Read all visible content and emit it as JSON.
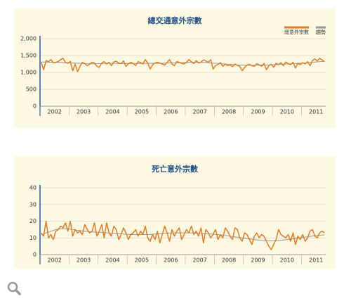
{
  "chart_data": [
    {
      "type": "line",
      "title": "總交通意外宗數",
      "legend": "top-right",
      "categories": [
        null,
        null,
        null,
        null,
        null,
        null,
        "2002",
        null,
        null,
        null,
        null,
        null,
        null,
        null,
        null,
        null,
        null,
        null,
        "2003",
        null,
        null,
        null,
        null,
        null,
        null,
        null,
        null,
        null,
        null,
        null,
        "2004",
        null,
        null,
        null,
        null,
        null,
        null,
        null,
        null,
        null,
        null,
        null,
        "2005",
        null,
        null,
        null,
        null,
        null,
        null,
        null,
        null,
        null,
        null,
        null,
        "2006",
        null,
        null,
        null,
        null,
        null,
        null,
        null,
        null,
        null,
        null,
        null,
        "2007",
        null,
        null,
        null,
        null,
        null,
        null,
        null,
        null,
        null,
        null,
        null,
        "2008",
        null,
        null,
        null,
        null,
        null,
        null,
        null,
        null,
        null,
        null,
        null,
        "2009",
        null,
        null,
        null,
        null,
        null,
        null,
        null,
        null,
        null,
        null,
        null,
        "2010",
        null,
        null,
        null,
        null,
        null,
        null,
        null,
        null,
        null,
        null,
        null,
        "2011",
        null,
        null,
        null
      ],
      "series": [
        {
          "name": "總意外宗數",
          "color": "#e57c22",
          "values": [
            1300,
            1080,
            1350,
            1320,
            1380,
            1290,
            1300,
            1320,
            1380,
            1420,
            1300,
            1270,
            1330,
            1050,
            1250,
            1020,
            1180,
            1300,
            1260,
            1200,
            1240,
            1300,
            1280,
            1180,
            1150,
            1280,
            1320,
            1250,
            1300,
            1200,
            1310,
            1330,
            1280,
            1260,
            1340,
            1180,
            1250,
            1300,
            1270,
            1200,
            1320,
            1290,
            1250,
            1380,
            1280,
            1100,
            1230,
            1280,
            1300,
            1280,
            1250,
            1220,
            1300,
            1380,
            1250,
            1200,
            1320,
            1300,
            1270,
            1250,
            1300,
            1380,
            1320,
            1260,
            1350,
            1280,
            1310,
            1370,
            1340,
            1300,
            1380,
            1100,
            1200,
            1240,
            1290,
            1180,
            1250,
            1200,
            1230,
            1170,
            1250,
            1210,
            1180,
            1050,
            1150,
            1220,
            1240,
            1200,
            1180,
            1260,
            1230,
            1180,
            1270,
            1080,
            1200,
            1240,
            1150,
            1270,
            1230,
            1290,
            1200,
            1310,
            1260,
            1230,
            1300,
            1130,
            1270,
            1230,
            1290,
            1250,
            1320,
            1200,
            1350,
            1400,
            1340,
            1420,
            1370,
            1320
          ]
        },
        {
          "name": "趨勢",
          "color": "#8b9aa3",
          "values": [
            1310,
            1308,
            1306,
            1304,
            1302,
            1300,
            1298,
            1296,
            1294,
            1292,
            1290,
            1288,
            1286,
            1282,
            1278,
            1274,
            1270,
            1266,
            1262,
            1258,
            1256,
            1256,
            1258,
            1260,
            1262,
            1264,
            1266,
            1268,
            1270,
            1270,
            1270,
            1268,
            1266,
            1264,
            1262,
            1262,
            1262,
            1262,
            1264,
            1264,
            1266,
            1266,
            1268,
            1268,
            1270,
            1270,
            1270,
            1270,
            1270,
            1272,
            1274,
            1276,
            1278,
            1280,
            1282,
            1284,
            1286,
            1288,
            1290,
            1292,
            1294,
            1296,
            1298,
            1300,
            1300,
            1300,
            1298,
            1296,
            1292,
            1288,
            1282,
            1276,
            1270,
            1264,
            1258,
            1252,
            1246,
            1240,
            1236,
            1232,
            1228,
            1224,
            1220,
            1218,
            1216,
            1214,
            1212,
            1212,
            1212,
            1214,
            1216,
            1218,
            1220,
            1222,
            1224,
            1226,
            1228,
            1232,
            1236,
            1240,
            1244,
            1248,
            1252,
            1256,
            1260,
            1264,
            1268,
            1272,
            1276,
            1282,
            1288,
            1294,
            1300,
            1306,
            1312,
            1318,
            1322,
            1326
          ]
        }
      ],
      "ylim": [
        0,
        2000
      ],
      "yticks": [
        0,
        500,
        {
          "value": 1000,
          "label": "1,000"
        },
        {
          "value": 1500,
          "label": "1,500"
        },
        {
          "value": 2000,
          "label": "2,000"
        }
      ],
      "grid": true
    },
    {
      "type": "line",
      "title": "死亡意外宗數",
      "categories": [
        null,
        null,
        null,
        null,
        null,
        null,
        "2002",
        null,
        null,
        null,
        null,
        null,
        null,
        null,
        null,
        null,
        null,
        null,
        "2003",
        null,
        null,
        null,
        null,
        null,
        null,
        null,
        null,
        null,
        null,
        null,
        "2004",
        null,
        null,
        null,
        null,
        null,
        null,
        null,
        null,
        null,
        null,
        null,
        "2005",
        null,
        null,
        null,
        null,
        null,
        null,
        null,
        null,
        null,
        null,
        null,
        "2006",
        null,
        null,
        null,
        null,
        null,
        null,
        null,
        null,
        null,
        null,
        null,
        "2007",
        null,
        null,
        null,
        null,
        null,
        null,
        null,
        null,
        null,
        null,
        null,
        "2008",
        null,
        null,
        null,
        null,
        null,
        null,
        null,
        null,
        null,
        null,
        null,
        "2009",
        null,
        null,
        null,
        null,
        null,
        null,
        null,
        null,
        null,
        null,
        null,
        "2010",
        null,
        null,
        null,
        null,
        null,
        null,
        null,
        null,
        null,
        null,
        null,
        "2011",
        null,
        null,
        null
      ],
      "series": [
        {
          "color": "#e57c22",
          "values": [
            13,
            11,
            20,
            10,
            12,
            9,
            14,
            15,
            17,
            16,
            19,
            14,
            20,
            11,
            15,
            13,
            14,
            12,
            18,
            15,
            13,
            14,
            19,
            11,
            14,
            18,
            10,
            19,
            13,
            11,
            17,
            15,
            9,
            12,
            16,
            13,
            9,
            12,
            13,
            15,
            11,
            14,
            12,
            17,
            10,
            8,
            12,
            9,
            14,
            7,
            12,
            17,
            13,
            8,
            15,
            11,
            14,
            16,
            9,
            12,
            15,
            13,
            17,
            12,
            14,
            11,
            16,
            7,
            15,
            13,
            10,
            12,
            15,
            9,
            12,
            10,
            16,
            14,
            11,
            9,
            16,
            15,
            10,
            8,
            13,
            12,
            9,
            6,
            11,
            13,
            10,
            12,
            11,
            8,
            5,
            3,
            6,
            9,
            15,
            12,
            11,
            10,
            12,
            8,
            13,
            6,
            11,
            9,
            12,
            8,
            10,
            14,
            15,
            11,
            10,
            13,
            14,
            13
          ]
        },
        {
          "color": "#8b9aa3",
          "values": [
            12,
            12.5,
            13,
            13.5,
            14,
            14.5,
            15,
            15.2,
            15.4,
            15.5,
            15.5,
            15.4,
            15.2,
            15,
            14.8,
            14.6,
            14.4,
            14.2,
            14,
            13.8,
            13.7,
            13.6,
            13.5,
            13.4,
            13.3,
            13.2,
            13.1,
            13,
            12.9,
            12.8,
            12.7,
            12.6,
            12.5,
            12.4,
            12.3,
            12.2,
            12.1,
            12,
            12,
            12,
            12,
            12,
            12,
            12,
            12,
            12.1,
            12.2,
            12.3,
            12.4,
            12.5,
            12.6,
            12.7,
            12.8,
            12.9,
            13,
            13,
            13,
            13,
            13,
            13,
            13,
            13,
            13,
            13,
            12.9,
            12.8,
            12.7,
            12.6,
            12.5,
            12.4,
            12.3,
            12.2,
            12.1,
            12,
            11.8,
            11.6,
            11.4,
            11.2,
            11,
            10.8,
            10.6,
            10.4,
            10.2,
            10,
            9.8,
            9.6,
            9.4,
            9.2,
            9,
            8.8,
            8.6,
            8.5,
            8.4,
            8.3,
            8.2,
            8.2,
            8.2,
            8.3,
            8.4,
            8.5,
            8.7,
            8.9,
            9.1,
            9.3,
            9.5,
            9.7,
            9.9,
            10.1,
            10.3,
            10.5,
            10.7,
            10.9,
            11.1,
            11.3,
            11.5,
            11.6,
            11.7,
            11.8
          ]
        }
      ],
      "ylim": [
        0,
        40
      ],
      "yticks": [
        0,
        10,
        20,
        30,
        40
      ],
      "grid": true
    }
  ]
}
